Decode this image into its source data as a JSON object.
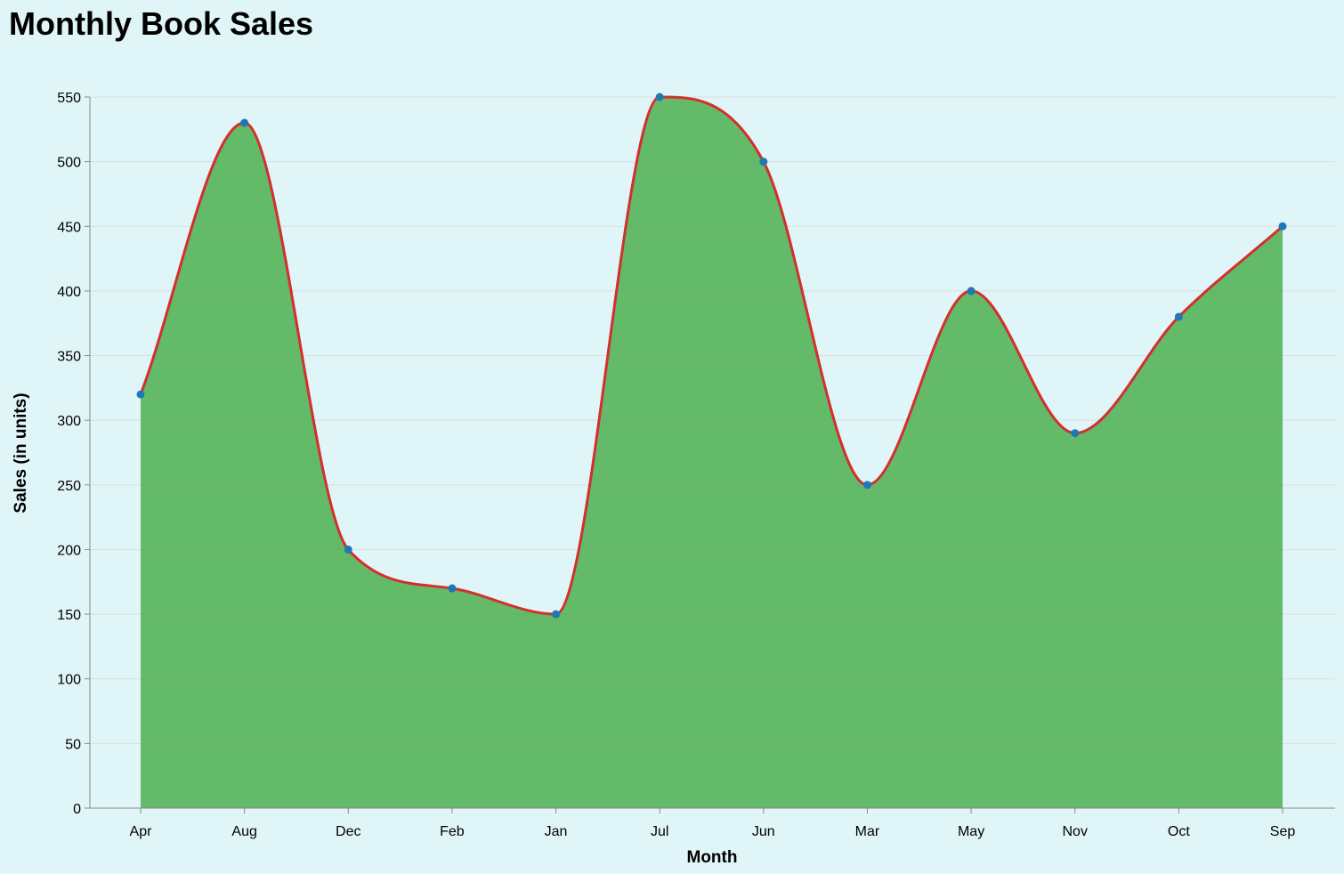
{
  "chart_data": {
    "type": "area",
    "title": "Monthly Book Sales",
    "xlabel": "Month",
    "ylabel": "Sales (in units)",
    "categories": [
      "Apr",
      "Aug",
      "Dec",
      "Feb",
      "Jan",
      "Jul",
      "Jun",
      "Mar",
      "May",
      "Nov",
      "Oct",
      "Sep"
    ],
    "values": [
      320,
      530,
      200,
      170,
      150,
      550,
      500,
      250,
      400,
      290,
      380,
      450
    ],
    "ylim": [
      0,
      550
    ],
    "yticks": [
      0,
      50,
      100,
      150,
      200,
      250,
      300,
      350,
      400,
      450,
      500,
      550
    ],
    "grid": true,
    "colors": {
      "area": "#4caf50",
      "line": "#d32f2f",
      "point": "#1f77b4",
      "grid": "#dddddd",
      "axis": "#888888"
    }
  }
}
